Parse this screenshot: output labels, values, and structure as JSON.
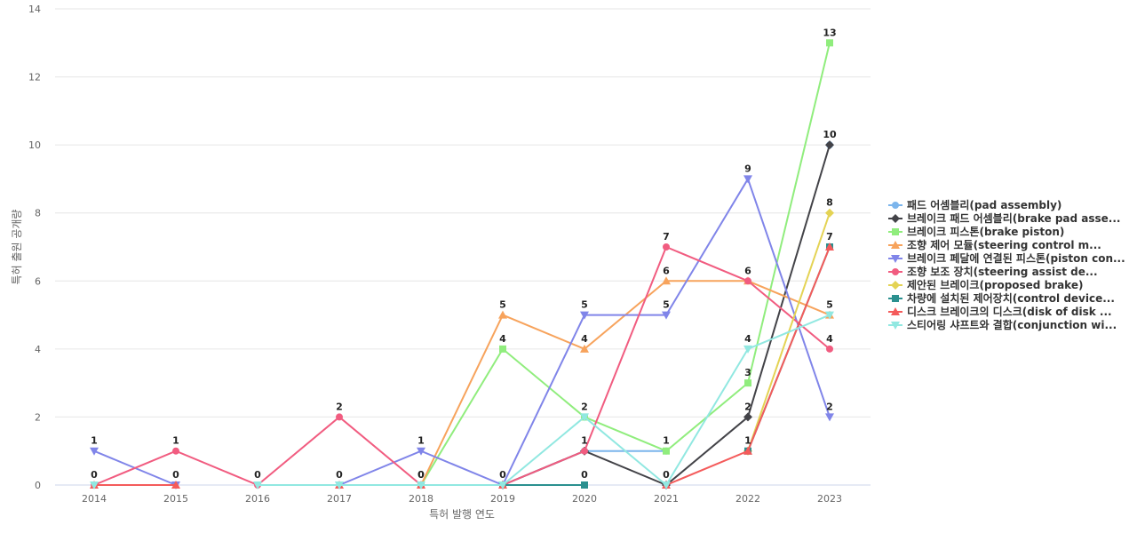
{
  "chart_data": {
    "type": "line",
    "xlabel": "특허 발행 연도",
    "ylabel": "특허 출원 공개량",
    "ylim": [
      0,
      14
    ],
    "yticks": [
      0,
      2,
      4,
      6,
      8,
      10,
      12,
      14
    ],
    "grid": true,
    "legend_position": "right",
    "x": [
      "2014",
      "2015",
      "2016",
      "2017",
      "2018",
      "2019",
      "2020",
      "2021",
      "2022",
      "2023"
    ],
    "series": [
      {
        "name": "패드 어셈블리(pad assembly)",
        "color": "#7cb5ec",
        "marker": "circle",
        "values": [
          null,
          null,
          null,
          null,
          null,
          0,
          1,
          1,
          null,
          10
        ],
        "labels": [
          null,
          null,
          null,
          null,
          null,
          null,
          null,
          null,
          null,
          null
        ]
      },
      {
        "name": "브레이크 패드 어셈블리(brake pad asse...",
        "color": "#434348",
        "marker": "diamond",
        "values": [
          null,
          null,
          null,
          null,
          null,
          0,
          1,
          0,
          2,
          10
        ],
        "labels": [
          null,
          null,
          null,
          null,
          null,
          null,
          null,
          null,
          2,
          10
        ]
      },
      {
        "name": "브레이크 피스톤(brake piston)",
        "color": "#90ed7d",
        "marker": "square",
        "values": [
          null,
          null,
          null,
          null,
          0,
          4,
          2,
          1,
          3,
          13
        ],
        "labels": [
          null,
          null,
          null,
          null,
          null,
          4,
          2,
          1,
          3,
          13
        ]
      },
      {
        "name": "조향 제어 모듈(steering control m...",
        "color": "#f7a35c",
        "marker": "triangle",
        "values": [
          null,
          null,
          null,
          null,
          0,
          5,
          4,
          6,
          6,
          5
        ],
        "labels": [
          null,
          null,
          null,
          null,
          null,
          5,
          4,
          6,
          6,
          null
        ]
      },
      {
        "name": "브레이크 페달에 연결된 피스톤(piston con...",
        "color": "#8085e9",
        "marker": "triangle-down",
        "values": [
          1,
          0,
          null,
          0,
          1,
          0,
          5,
          5,
          9,
          2
        ],
        "labels": [
          1,
          null,
          null,
          null,
          1,
          null,
          5,
          5,
          9,
          2
        ]
      },
      {
        "name": "조향 보조 장치(steering assist de...",
        "color": "#f15c80",
        "marker": "circle",
        "values": [
          0,
          1,
          0,
          2,
          0,
          0,
          1,
          7,
          6,
          4
        ],
        "labels": [
          0,
          1,
          0,
          2,
          0,
          0,
          1,
          7,
          null,
          4
        ]
      },
      {
        "name": "제안된 브레이크(proposed brake)",
        "color": "#e4d354",
        "marker": "diamond",
        "values": [
          null,
          null,
          null,
          null,
          null,
          null,
          null,
          null,
          1,
          8
        ],
        "labels": [
          null,
          null,
          null,
          null,
          null,
          null,
          null,
          null,
          null,
          8
        ]
      },
      {
        "name": "차량에 설치된 제어장치(control device...",
        "color": "#2b908f",
        "marker": "square",
        "values": [
          null,
          null,
          null,
          null,
          null,
          0,
          0,
          null,
          1,
          7
        ],
        "labels": [
          null,
          null,
          null,
          null,
          null,
          null,
          0,
          null,
          null,
          null
        ]
      },
      {
        "name": "디스크 브레이크의 디스크(disk of disk ...",
        "color": "#f45b5b",
        "marker": "triangle",
        "values": [
          0,
          0,
          null,
          0,
          0,
          0,
          null,
          0,
          1,
          7
        ],
        "labels": [
          null,
          0,
          null,
          0,
          0,
          null,
          null,
          0,
          1,
          7
        ]
      },
      {
        "name": "스티어링 샤프트와 결합(conjunction wi...",
        "color": "#91e8e1",
        "marker": "triangle-down",
        "values": [
          0,
          null,
          0,
          0,
          0,
          0,
          2,
          0,
          4,
          5
        ],
        "labels": [
          null,
          null,
          null,
          null,
          null,
          null,
          null,
          null,
          4,
          5
        ]
      }
    ]
  }
}
